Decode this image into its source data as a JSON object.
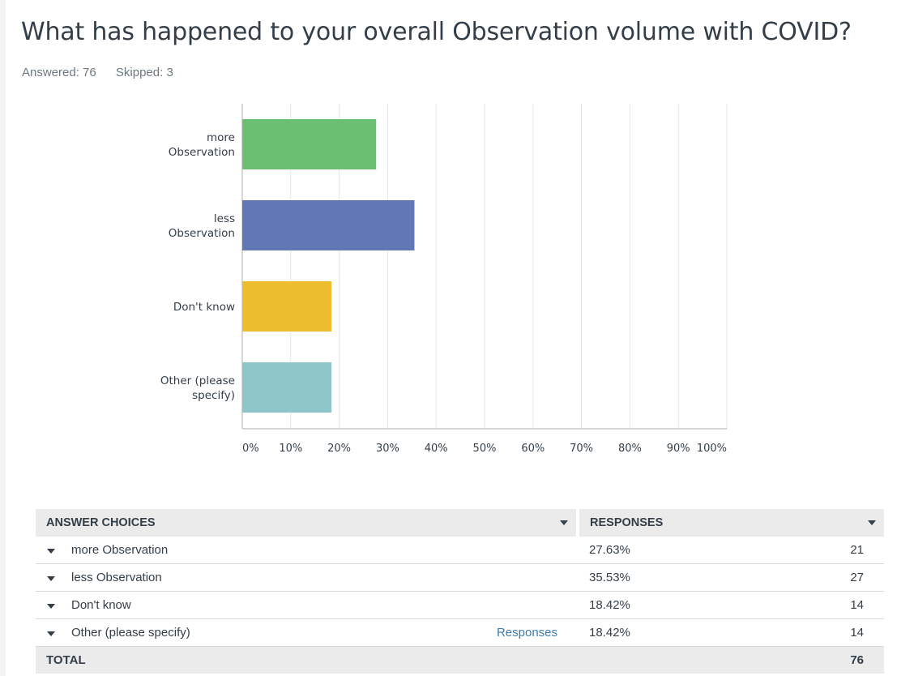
{
  "question": {
    "title": "What has happened to your overall Observation volume with COVID?",
    "answered": "Answered: 76",
    "skipped": "Skipped: 3"
  },
  "chart_data": {
    "type": "bar",
    "orientation": "horizontal",
    "categories": [
      [
        "more",
        "Observation"
      ],
      [
        "less",
        "Observation"
      ],
      [
        "Don't know"
      ],
      [
        "Other (please",
        "specify)"
      ]
    ],
    "values": [
      27.63,
      35.53,
      18.42,
      18.42
    ],
    "colors": [
      "#6bbf73",
      "#6078b4",
      "#ebbd2f",
      "#8fc6ca"
    ],
    "xlim": [
      0,
      100
    ],
    "xticks": [
      "0%",
      "10%",
      "20%",
      "30%",
      "40%",
      "50%",
      "60%",
      "70%",
      "80%",
      "90%",
      "100%"
    ],
    "grid": true
  },
  "table": {
    "col_choices": "ANSWER CHOICES",
    "col_responses": "RESPONSES",
    "rows": [
      {
        "choice": "more Observation",
        "link": "",
        "pct": "27.63%",
        "count": "21"
      },
      {
        "choice": "less Observation",
        "link": "",
        "pct": "35.53%",
        "count": "27"
      },
      {
        "choice": "Don't know",
        "link": "",
        "pct": "18.42%",
        "count": "14"
      },
      {
        "choice": "Other (please specify)",
        "link": "Responses",
        "pct": "18.42%",
        "count": "14"
      }
    ],
    "total_label": "TOTAL",
    "total_count": "76"
  }
}
